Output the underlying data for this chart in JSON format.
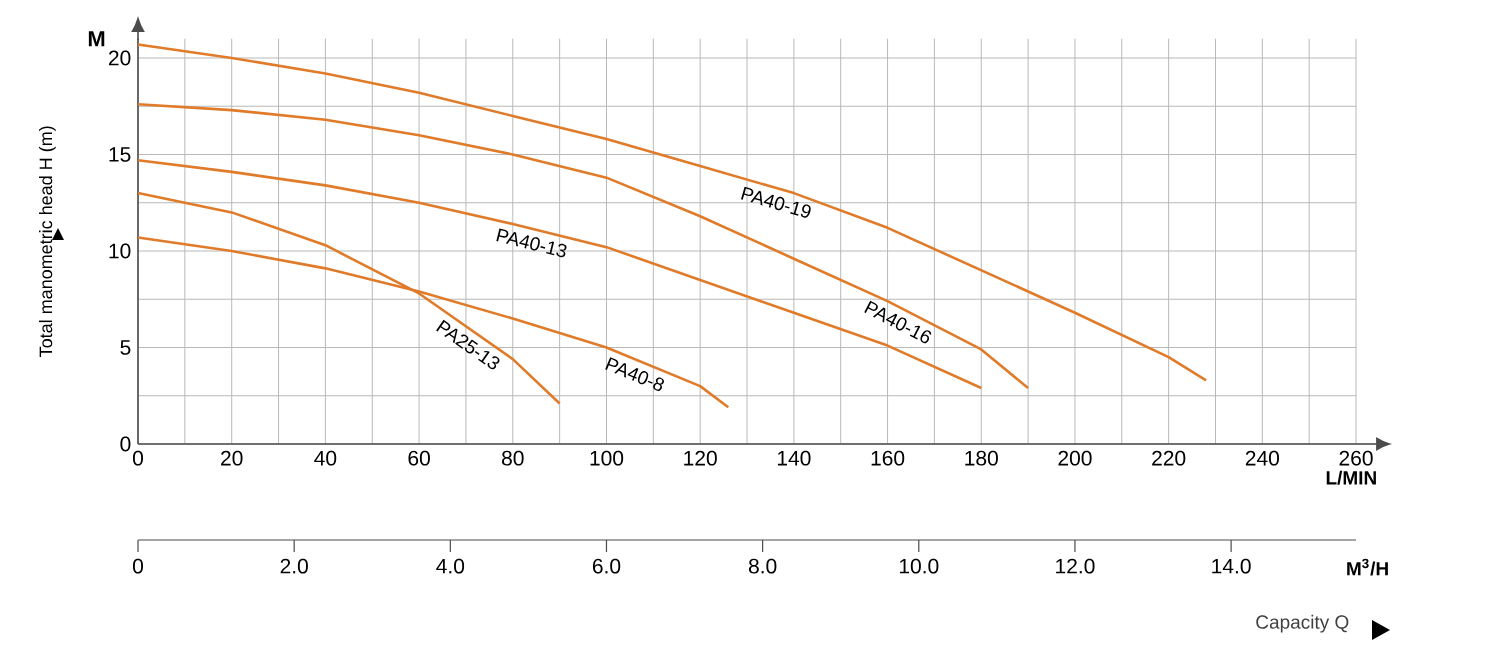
{
  "chart_data": {
    "type": "line",
    "xlabel": "L/MIN",
    "ylabel": "Total manometric head H (m)",
    "x2label": "M$^{3}$/H",
    "xlim": [
      0,
      260
    ],
    "xticks": [
      0,
      20,
      40,
      60,
      80,
      100,
      120,
      140,
      160,
      180,
      200,
      220,
      240,
      260
    ],
    "ylim": [
      0,
      21
    ],
    "yticks": [
      0,
      5,
      10,
      15,
      20
    ],
    "x2lim": [
      0,
      15.6
    ],
    "x2ticks": [
      0,
      {
        "value": 2,
        "label": "2.0"
      },
      {
        "value": 4,
        "label": "4.0"
      },
      {
        "value": 6,
        "label": "6.0"
      },
      {
        "value": 8,
        "label": "8.0"
      },
      {
        "value": 10,
        "label": "10.0"
      },
      {
        "value": 12,
        "label": "12.0"
      },
      {
        "value": 14,
        "label": "14.0"
      }
    ],
    "grid": true,
    "legend": false,
    "marker": "none",
    "line_style": "solid",
    "annotations": [
      "M",
      "Capacity Q"
    ],
    "series": [
      {
        "name": "PA40-19",
        "color": "#e07b2a",
        "x": [
          0,
          20,
          40,
          60,
          80,
          100,
          120,
          140,
          160,
          180,
          200,
          220,
          228
        ],
        "values": [
          20.7,
          20.0,
          19.2,
          18.2,
          17.0,
          15.8,
          14.4,
          13.0,
          11.2,
          9.0,
          6.8,
          4.5,
          3.3
        ]
      },
      {
        "name": "PA40-16",
        "color": "#e07b2a",
        "x": [
          0,
          20,
          40,
          60,
          80,
          100,
          120,
          140,
          160,
          180,
          190
        ],
        "values": [
          17.6,
          17.3,
          16.8,
          16.0,
          15.0,
          13.8,
          11.8,
          9.6,
          7.4,
          4.9,
          2.9
        ]
      },
      {
        "name": "PA40-13",
        "color": "#e07b2a",
        "x": [
          0,
          20,
          40,
          60,
          80,
          100,
          120,
          140,
          160,
          180
        ],
        "values": [
          14.7,
          14.1,
          13.4,
          12.5,
          11.4,
          10.2,
          8.5,
          6.8,
          5.1,
          2.9
        ]
      },
      {
        "name": "PA25-13",
        "color": "#e07b2a",
        "x": [
          0,
          20,
          40,
          60,
          80,
          90
        ],
        "values": [
          13.0,
          12.0,
          10.3,
          7.8,
          4.4,
          2.1
        ]
      },
      {
        "name": "PA40-8",
        "color": "#e07b2a",
        "x": [
          0,
          20,
          40,
          60,
          80,
          100,
          120,
          126
        ],
        "values": [
          10.7,
          10.0,
          9.1,
          7.9,
          6.5,
          5.0,
          3.0,
          1.9
        ]
      }
    ]
  }
}
